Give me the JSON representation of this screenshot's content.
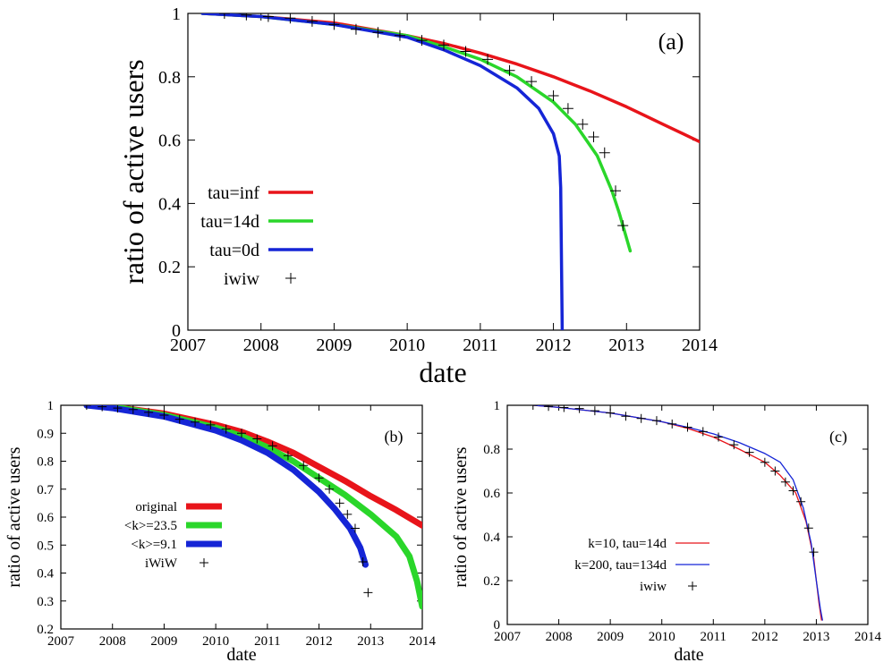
{
  "chart_data": [
    {
      "type": "line",
      "panel_label": "(a)",
      "xlabel": "date",
      "ylabel": "ratio of active users",
      "xlim": [
        2007,
        2014
      ],
      "ylim": [
        0,
        1
      ],
      "xticks": [
        "2007",
        "2008",
        "2009",
        "2010",
        "2011",
        "2012",
        "2013",
        "2014"
      ],
      "yticks": [
        "0",
        "0.2",
        "0.4",
        "0.6",
        "0.8",
        "1"
      ],
      "legend_position": "lower-left",
      "series": [
        {
          "name": "tau=inf",
          "color": "#e8141a",
          "style": "line",
          "x": [
            2007.2,
            2008,
            2009,
            2010,
            2010.5,
            2011,
            2011.5,
            2012,
            2012.5,
            2013,
            2013.5,
            2014
          ],
          "y": [
            1,
            0.99,
            0.97,
            0.93,
            0.905,
            0.875,
            0.84,
            0.8,
            0.755,
            0.705,
            0.65,
            0.595
          ]
        },
        {
          "name": "tau=14d",
          "color": "#2ad62a",
          "style": "line",
          "x": [
            2007.2,
            2008,
            2009,
            2010,
            2010.5,
            2011,
            2011.5,
            2012,
            2012.3,
            2012.6,
            2012.8,
            2012.9,
            2013,
            2013.05
          ],
          "y": [
            1,
            0.99,
            0.965,
            0.93,
            0.895,
            0.855,
            0.8,
            0.72,
            0.65,
            0.55,
            0.44,
            0.37,
            0.29,
            0.25
          ]
        },
        {
          "name": "tau=0d",
          "color": "#1525d6",
          "style": "line",
          "x": [
            2007.2,
            2008,
            2009,
            2010,
            2010.5,
            2011,
            2011.5,
            2011.8,
            2012,
            2012.08,
            2012.1,
            2012.12,
            2012.12
          ],
          "y": [
            1,
            0.99,
            0.965,
            0.925,
            0.885,
            0.835,
            0.765,
            0.7,
            0.62,
            0.55,
            0.45,
            0.0,
            0.0
          ]
        },
        {
          "name": "iwiw",
          "color": "#000000",
          "style": "markers",
          "x": [
            2007.5,
            2007.8,
            2008.1,
            2008.4,
            2008.7,
            2009,
            2009.3,
            2009.6,
            2009.9,
            2010.2,
            2010.5,
            2010.8,
            2011.1,
            2011.4,
            2011.7,
            2012,
            2012.2,
            2012.4,
            2012.55,
            2012.7,
            2012.85,
            2012.95
          ],
          "y": [
            1,
            0.995,
            0.99,
            0.985,
            0.975,
            0.965,
            0.95,
            0.94,
            0.93,
            0.915,
            0.9,
            0.88,
            0.855,
            0.82,
            0.785,
            0.74,
            0.7,
            0.65,
            0.61,
            0.56,
            0.44,
            0.33
          ]
        }
      ]
    },
    {
      "type": "line",
      "panel_label": "(b)",
      "xlabel": "date",
      "ylabel": "ratio of active users",
      "xlim": [
        2007,
        2014
      ],
      "ylim": [
        0.2,
        1
      ],
      "xticks": [
        "2007",
        "2008",
        "2009",
        "2010",
        "2011",
        "2012",
        "2013",
        "2014"
      ],
      "yticks": [
        "0.2",
        "0.3",
        "0.4",
        "0.5",
        "0.6",
        "0.7",
        "0.8",
        "0.9",
        "1"
      ],
      "legend_position": "lower-left",
      "series": [
        {
          "name": "original",
          "color": "#e8141a",
          "style": "thick-line",
          "x": [
            2007.5,
            2008,
            2009,
            2010,
            2010.5,
            2011,
            2011.5,
            2012,
            2012.5,
            2013,
            2013.5,
            2014
          ],
          "y": [
            1,
            0.995,
            0.97,
            0.93,
            0.905,
            0.87,
            0.83,
            0.78,
            0.73,
            0.675,
            0.625,
            0.57
          ]
        },
        {
          "name": "<k>=23.5",
          "color": "#2ad62a",
          "style": "thick-line",
          "x": [
            2007.5,
            2008,
            2009,
            2010,
            2010.5,
            2011,
            2011.5,
            2012,
            2012.5,
            2013,
            2013.5,
            2013.75,
            2013.9,
            2014
          ],
          "y": [
            1,
            0.995,
            0.965,
            0.92,
            0.89,
            0.85,
            0.8,
            0.74,
            0.68,
            0.61,
            0.53,
            0.46,
            0.37,
            0.28
          ]
        },
        {
          "name": "<k>=9.1",
          "color": "#1525d6",
          "style": "thick-line",
          "x": [
            2007.5,
            2008,
            2009,
            2010,
            2010.5,
            2011,
            2011.5,
            2012,
            2012.3,
            2012.6,
            2012.8,
            2012.9
          ],
          "y": [
            1,
            0.99,
            0.96,
            0.91,
            0.875,
            0.83,
            0.77,
            0.69,
            0.63,
            0.56,
            0.49,
            0.43
          ]
        },
        {
          "name": "iWiW",
          "color": "#000000",
          "style": "markers",
          "x": [
            2007.5,
            2007.8,
            2008.1,
            2008.4,
            2008.7,
            2009,
            2009.3,
            2009.6,
            2009.9,
            2010.2,
            2010.5,
            2010.8,
            2011.1,
            2011.4,
            2011.7,
            2012,
            2012.2,
            2012.4,
            2012.55,
            2012.7,
            2012.85,
            2012.95
          ],
          "y": [
            1,
            0.995,
            0.99,
            0.985,
            0.975,
            0.965,
            0.95,
            0.94,
            0.93,
            0.915,
            0.9,
            0.88,
            0.855,
            0.82,
            0.785,
            0.74,
            0.7,
            0.65,
            0.61,
            0.56,
            0.44,
            0.33
          ]
        }
      ]
    },
    {
      "type": "line",
      "panel_label": "(c)",
      "xlabel": "date",
      "ylabel": "ratio of active users",
      "xlim": [
        2007,
        2014
      ],
      "ylim": [
        0,
        1
      ],
      "xticks": [
        "2007",
        "2008",
        "2009",
        "2010",
        "2011",
        "2012",
        "2013",
        "2014"
      ],
      "yticks": [
        "0",
        "0.2",
        "0.4",
        "0.6",
        "0.8",
        "1"
      ],
      "legend_position": "lower-left",
      "series": [
        {
          "name": "k=10, tau=14d",
          "color": "#e8141a",
          "style": "thin-line",
          "x": [
            2007.5,
            2008,
            2009,
            2010,
            2010.5,
            2011,
            2011.5,
            2012,
            2012.3,
            2012.6,
            2012.8,
            2012.95,
            2013.05,
            2013.1
          ],
          "y": [
            1,
            0.99,
            0.965,
            0.925,
            0.895,
            0.855,
            0.8,
            0.74,
            0.68,
            0.6,
            0.47,
            0.3,
            0.1,
            0.02
          ]
        },
        {
          "name": "k=200, tau=134d",
          "color": "#1525d6",
          "style": "thin-line",
          "x": [
            2007.5,
            2008,
            2009,
            2010,
            2010.5,
            2011,
            2011.5,
            2012,
            2012.3,
            2012.55,
            2012.75,
            2012.9,
            2013,
            2013.08,
            2013.12
          ],
          "y": [
            1,
            0.99,
            0.965,
            0.925,
            0.9,
            0.87,
            0.83,
            0.78,
            0.74,
            0.66,
            0.53,
            0.37,
            0.2,
            0.07,
            0.02
          ]
        },
        {
          "name": "iwiw",
          "color": "#000000",
          "style": "markers",
          "x": [
            2007.5,
            2007.8,
            2008.1,
            2008.4,
            2008.7,
            2009,
            2009.3,
            2009.6,
            2009.9,
            2010.2,
            2010.5,
            2010.8,
            2011.1,
            2011.4,
            2011.7,
            2012,
            2012.2,
            2012.4,
            2012.55,
            2012.7,
            2012.85,
            2012.95
          ],
          "y": [
            1,
            0.995,
            0.99,
            0.985,
            0.975,
            0.965,
            0.95,
            0.94,
            0.93,
            0.915,
            0.9,
            0.88,
            0.855,
            0.82,
            0.785,
            0.74,
            0.7,
            0.65,
            0.61,
            0.56,
            0.44,
            0.33
          ]
        }
      ]
    }
  ]
}
